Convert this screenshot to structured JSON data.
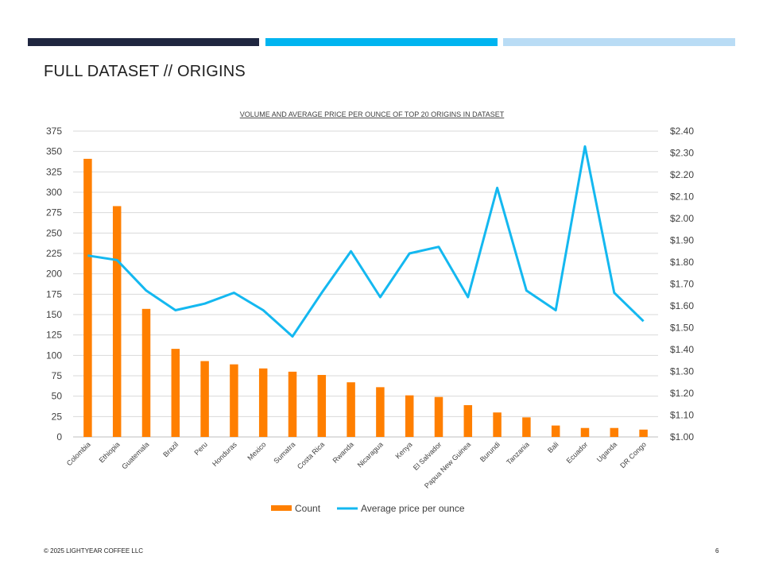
{
  "slide": {
    "title": "FULL DATASET // ORIGINS",
    "footer": "© 2025 LIGHTYEAR COFFEE LLC",
    "page_number": "6"
  },
  "colors": {
    "bar": "#ff7f00",
    "line": "#14b8f0",
    "strip_dark": "#1f2640",
    "strip_blue": "#00b4f0",
    "strip_light": "#b9dcf5"
  },
  "chart_data": {
    "type": "bar",
    "title": "VOLUME AND AVERAGE PRICE PER OUNCE OF TOP 20 ORIGINS IN DATASET",
    "categories": [
      "Colombia",
      "Ethiopia",
      "Guatemala",
      "Brazil",
      "Peru",
      "Honduras",
      "Mexico",
      "Sumatra",
      "Costa Rica",
      "Rwanda",
      "Nicaragua",
      "Kenya",
      "El Salvador",
      "Papua New Guinea",
      "Burundi",
      "Tanzania",
      "Bali",
      "Ecuador",
      "Uganda",
      "DR Congo"
    ],
    "series": [
      {
        "name": "Count",
        "type": "bar",
        "axis": "left",
        "values": [
          341,
          283,
          157,
          108,
          93,
          89,
          84,
          80,
          76,
          67,
          61,
          51,
          49,
          39,
          30,
          24,
          14,
          11,
          11,
          9
        ]
      },
      {
        "name": "Average price per ounce",
        "type": "line",
        "axis": "right",
        "values": [
          1.83,
          1.81,
          1.67,
          1.58,
          1.61,
          1.66,
          1.58,
          1.46,
          1.66,
          1.85,
          1.64,
          1.84,
          1.87,
          1.64,
          2.14,
          1.67,
          1.58,
          2.33,
          1.66,
          1.53
        ]
      }
    ],
    "y_left": {
      "min": 0,
      "max": 375,
      "step": 25,
      "ticks": [
        "0",
        "25",
        "50",
        "75",
        "100",
        "125",
        "150",
        "175",
        "200",
        "225",
        "250",
        "275",
        "300",
        "325",
        "350",
        "375"
      ]
    },
    "y_right": {
      "min": 1.0,
      "max": 2.4,
      "step": 0.1,
      "ticks": [
        "$1.00",
        "$1.10",
        "$1.20",
        "$1.30",
        "$1.40",
        "$1.50",
        "$1.60",
        "$1.70",
        "$1.80",
        "$1.90",
        "$2.00",
        "$2.10",
        "$2.20",
        "$2.30",
        "$2.40"
      ]
    },
    "grid": true,
    "legend": "bottom"
  }
}
